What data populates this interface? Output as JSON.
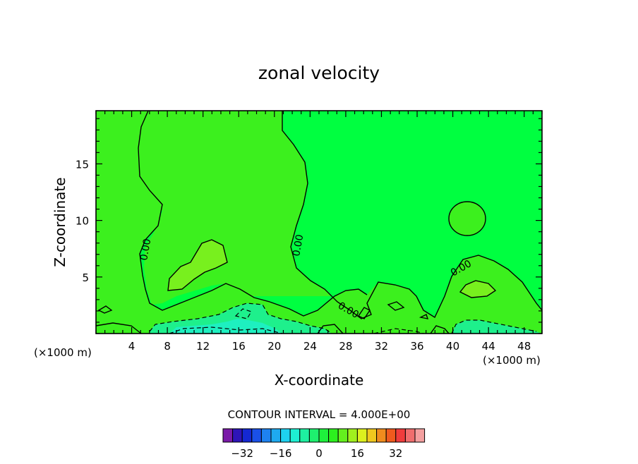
{
  "chart_data": {
    "type": "contour",
    "title": "zonal velocity",
    "xlabel": "X-coordinate",
    "ylabel": "Z-coordinate",
    "x_unit_label": "(×1000 m)",
    "x_ticks": [
      4,
      8,
      12,
      16,
      20,
      24,
      28,
      32,
      36,
      40,
      44,
      48
    ],
    "y_ticks": [
      5,
      10,
      15
    ],
    "xlim": [
      0,
      50
    ],
    "ylim": [
      0,
      19.7
    ],
    "contour_interval_text": "CONTOUR INTERVAL = 4.000E+00",
    "contour_labels": [
      "0.00",
      "0.00",
      "0.00",
      "0.00"
    ],
    "colorbar_ticks": [
      "−32",
      "−16",
      "0",
      "16",
      "32"
    ],
    "colorbar_levels": [
      -36,
      -32,
      -28,
      -24,
      -20,
      -16,
      -12,
      -8,
      -4,
      0,
      4,
      8,
      12,
      16,
      20,
      24,
      28,
      32,
      36
    ],
    "colorbar_colors": [
      "#7a1aa8",
      "#2e14b8",
      "#1428d2",
      "#1a50e8",
      "#1e82f0",
      "#1eaaf0",
      "#1ed2f0",
      "#1ef0d2",
      "#1ef0a0",
      "#1ef06e",
      "#1ef03c",
      "#2cf01e",
      "#64f01e",
      "#a0f01e",
      "#dcf01e",
      "#f0c81e",
      "#f08c1e",
      "#f05a1e",
      "#f03c3c",
      "#f06e6e",
      "#f4a0a0"
    ],
    "fill_colors": {
      "background_band": "#00ff40",
      "weak_positive": "#3cf01e",
      "moderate_positive": "#78f01e",
      "weak_negative": "#1ef08c",
      "moderate_negative": "#1ef0c0"
    }
  }
}
